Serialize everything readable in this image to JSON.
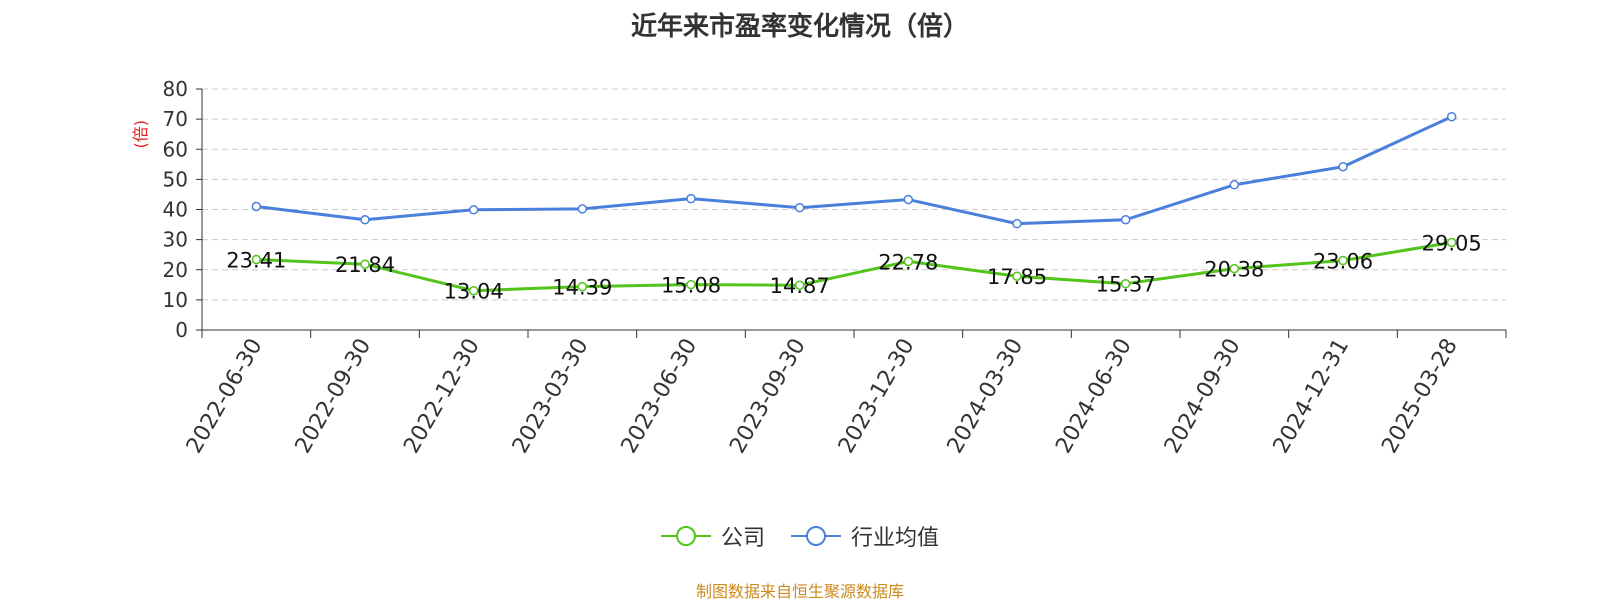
{
  "chart_data": {
    "type": "line",
    "title": "近年来市盈率变化情况（倍）",
    "ylabel": "(倍)",
    "xlabel": "",
    "ylim": [
      0,
      80
    ],
    "yticks": [
      0,
      10,
      20,
      30,
      40,
      50,
      60,
      70,
      80
    ],
    "grid": true,
    "legend_position": "bottom-center",
    "categories": [
      "2022-06-30",
      "2022-09-30",
      "2022-12-30",
      "2023-03-30",
      "2023-06-30",
      "2023-09-30",
      "2023-12-30",
      "2024-03-30",
      "2024-06-30",
      "2024-09-30",
      "2024-12-31",
      "2025-03-28"
    ],
    "series": [
      {
        "name": "公司",
        "color": "#52c41a",
        "values": [
          23.41,
          21.84,
          13.04,
          14.39,
          15.08,
          14.87,
          22.78,
          17.85,
          15.37,
          20.38,
          23.06,
          29.05
        ],
        "data_labels": [
          "23.41",
          "21.84",
          "13.04",
          "14.39",
          "15.08",
          "14.87",
          "22.78",
          "17.85",
          "15.37",
          "20.38",
          "23.06",
          "29.05"
        ]
      },
      {
        "name": "行业均值",
        "color": "#4a7fdc",
        "values": [
          41.0,
          36.6,
          39.9,
          40.2,
          43.6,
          40.6,
          43.3,
          35.3,
          36.6,
          48.2,
          54.2,
          70.8
        ]
      }
    ],
    "source_note": "制图数据来自恒生聚源数据库"
  }
}
